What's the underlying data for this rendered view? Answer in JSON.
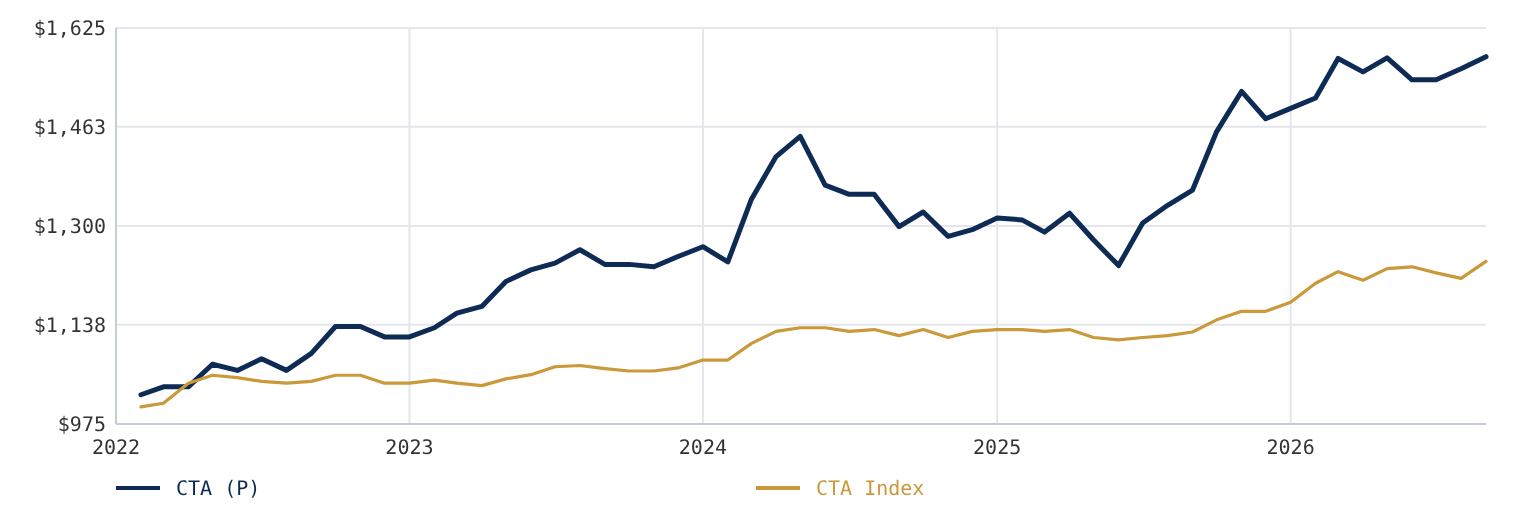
{
  "chart_data": {
    "type": "line",
    "x": [
      "2022-02",
      "2022-03",
      "2022-04",
      "2022-05",
      "2022-06",
      "2022-07",
      "2022-08",
      "2022-09",
      "2022-10",
      "2022-11",
      "2022-12",
      "2023-01",
      "2023-02",
      "2023-03",
      "2023-04",
      "2023-05",
      "2023-06",
      "2023-07",
      "2023-08",
      "2023-09",
      "2023-10",
      "2023-11",
      "2023-12",
      "2024-01",
      "2024-02",
      "2024-03",
      "2024-04",
      "2024-05",
      "2024-06",
      "2024-07",
      "2024-08",
      "2024-09",
      "2024-10",
      "2024-11",
      "2024-12",
      "2025-01",
      "2025-02",
      "2025-03",
      "2025-04",
      "2025-05",
      "2025-06",
      "2025-07",
      "2025-08",
      "2025-09",
      "2025-10",
      "2025-11",
      "2025-12",
      "2026-01",
      "2026-02",
      "2026-03",
      "2026-04",
      "2026-05",
      "2026-06",
      "2026-07",
      "2026-08",
      "2026-09"
    ],
    "series": [
      {
        "name": "CTA (P)",
        "color": "#0d2b55",
        "values": [
          1023,
          1036,
          1036,
          1073,
          1063,
          1082,
          1063,
          1091,
          1135,
          1135,
          1118,
          1118,
          1133,
          1157,
          1168,
          1209,
          1228,
          1239,
          1261,
          1237,
          1237,
          1233,
          1250,
          1266,
          1241,
          1343,
          1414,
          1447,
          1367,
          1352,
          1352,
          1299,
          1323,
          1283,
          1294,
          1313,
          1310,
          1290,
          1321,
          1277,
          1235,
          1305,
          1334,
          1359,
          1455,
          1521,
          1476,
          1493,
          1510,
          1575,
          1553,
          1576,
          1540,
          1540,
          1558,
          1578
        ]
      },
      {
        "name": "CTA Index",
        "color": "#c9993a",
        "values": [
          1003,
          1009,
          1042,
          1055,
          1051,
          1045,
          1042,
          1045,
          1055,
          1055,
          1042,
          1042,
          1047,
          1042,
          1038,
          1049,
          1056,
          1069,
          1071,
          1066,
          1062,
          1062,
          1067,
          1080,
          1080,
          1107,
          1127,
          1133,
          1133,
          1127,
          1130,
          1120,
          1130,
          1117,
          1127,
          1130,
          1130,
          1127,
          1130,
          1117,
          1113,
          1117,
          1120,
          1126,
          1146,
          1160,
          1160,
          1175,
          1206,
          1225,
          1211,
          1230,
          1233,
          1223,
          1214,
          1242
        ]
      }
    ],
    "xlim": [
      "2022-01",
      "2026-09"
    ],
    "xticks": [
      "2022",
      "2023",
      "2024",
      "2025",
      "2026"
    ],
    "ylim": [
      975,
      1625
    ],
    "yticks": [
      {
        "value": 975,
        "label": "$975"
      },
      {
        "value": 1138,
        "label": "$1,138"
      },
      {
        "value": 1300,
        "label": "$1,300"
      },
      {
        "value": 1463,
        "label": "$1,463"
      },
      {
        "value": 1625,
        "label": "$1,625"
      }
    ],
    "grid": true,
    "legend": "bottom",
    "marker": "none",
    "line_style": "solid"
  }
}
